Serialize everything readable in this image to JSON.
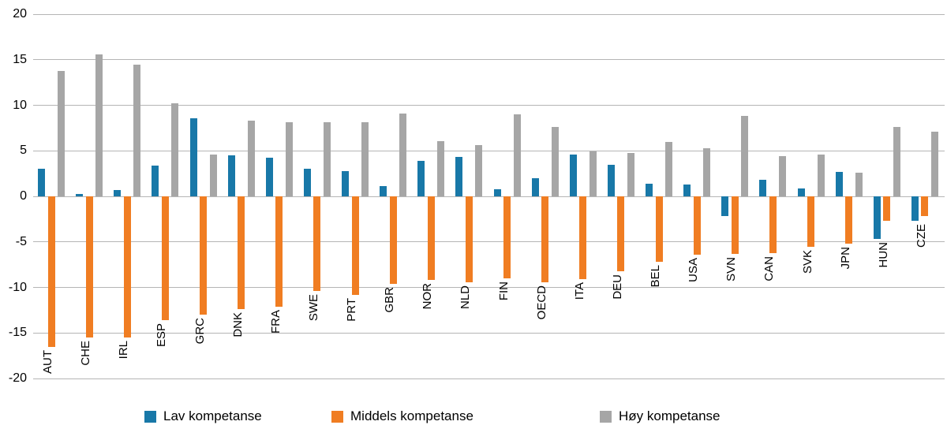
{
  "chart_data": {
    "type": "bar",
    "categories": [
      "AUT",
      "CHE",
      "IRL",
      "ESP",
      "GRC",
      "DNK",
      "FRA",
      "SWE",
      "PRT",
      "GBR",
      "NOR",
      "NLD",
      "FIN",
      "OECD",
      "ITA",
      "DEU",
      "BEL",
      "USA",
      "SVN",
      "CAN",
      "SVK",
      "JPN",
      "HUN",
      "CZE"
    ],
    "series": [
      {
        "name": "Lav kompetanse",
        "color": "#1878A8",
        "values": [
          3.0,
          0.3,
          0.7,
          3.4,
          8.6,
          4.5,
          4.2,
          3.0,
          2.8,
          1.1,
          3.9,
          4.3,
          0.8,
          2.0,
          4.6,
          3.5,
          1.4,
          1.3,
          -2.2,
          1.8,
          0.9,
          2.7,
          -4.7,
          -2.7
        ]
      },
      {
        "name": "Middels kompetanse",
        "color": "#F07D22",
        "values": [
          -16.5,
          -15.5,
          -15.5,
          -13.6,
          -13.0,
          -12.4,
          -12.1,
          -10.4,
          -10.8,
          -9.6,
          -9.2,
          -9.4,
          -9.0,
          -9.4,
          -9.1,
          -8.2,
          -7.2,
          -6.4,
          -6.3,
          -6.2,
          -5.5,
          -5.2,
          -2.7,
          -2.2
        ]
      },
      {
        "name": "Høy kompetanse",
        "color": "#A6A6A6",
        "values": [
          13.8,
          15.6,
          14.5,
          10.2,
          4.6,
          8.3,
          8.1,
          8.1,
          8.1,
          9.1,
          6.1,
          5.6,
          9.0,
          7.6,
          4.9,
          4.8,
          6.0,
          5.3,
          8.8,
          4.4,
          4.6,
          2.6,
          7.6,
          7.1
        ]
      }
    ],
    "title": "",
    "xlabel": "",
    "ylabel": "",
    "ylim": [
      -20,
      20
    ],
    "ytick_step": 5,
    "grid": true,
    "legend_position": "bottom"
  },
  "axis": {
    "yticks": [
      "20",
      "15",
      "10",
      "5",
      "0",
      "-5",
      "-10",
      "-15",
      "-20"
    ]
  }
}
